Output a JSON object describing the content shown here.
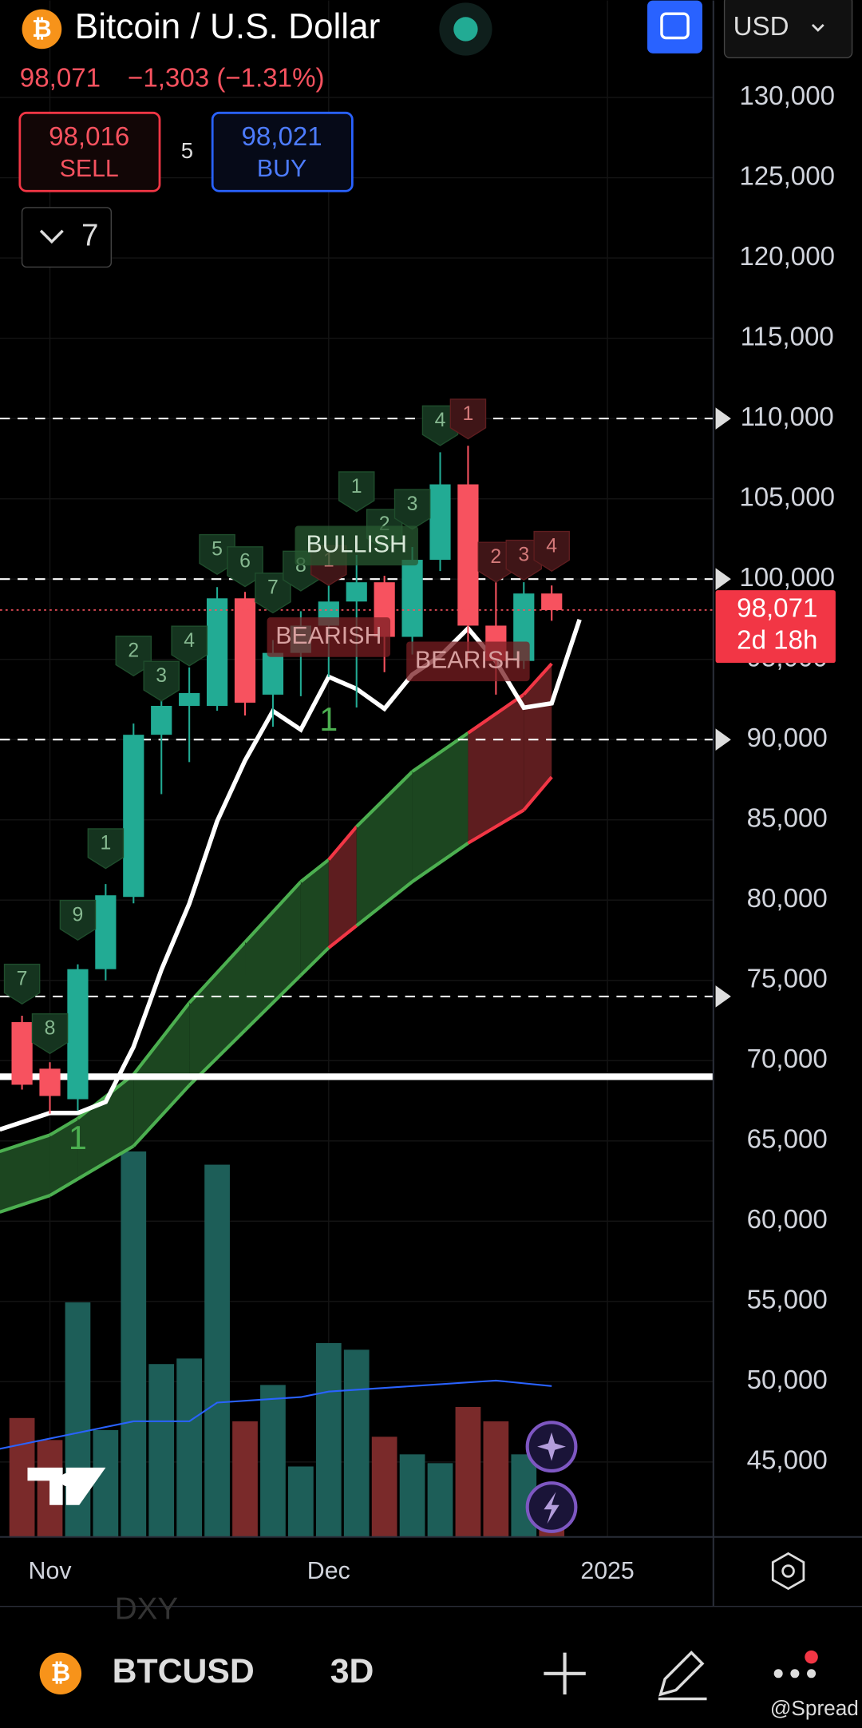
{
  "header": {
    "title": "Bitcoin / U.S. Dollar",
    "price": "98,071",
    "change": "−1,303 (−1.31%)",
    "currency": "USD",
    "sell_price": "98,016",
    "sell_label": "SELL",
    "spread": "5",
    "buy_price": "98,021",
    "buy_label": "BUY",
    "indicators_count": "7"
  },
  "chart_data": {
    "type": "candlestick",
    "xlim": [
      -0.79,
      24.8
    ],
    "xticks": [
      {
        "value": 1,
        "label": "Nov"
      },
      {
        "value": 11,
        "label": "Dec"
      },
      {
        "value": 21,
        "label": "2025"
      }
    ],
    "ylim": [
      40330,
      136040
    ],
    "yticks": [
      {
        "value": 45000,
        "label": "45,000"
      },
      {
        "value": 50000,
        "label": "50,000"
      },
      {
        "value": 55000,
        "label": "55,000"
      },
      {
        "value": 60000,
        "label": "60,000"
      },
      {
        "value": 65000,
        "label": "65,000"
      },
      {
        "value": 70000,
        "label": "70,000"
      },
      {
        "value": 75000,
        "label": "75,000"
      },
      {
        "value": 80000,
        "label": "80,000"
      },
      {
        "value": 85000,
        "label": "85,000"
      },
      {
        "value": 90000,
        "label": "90,000"
      },
      {
        "value": 95000,
        "label": "95,000"
      },
      {
        "value": 100000,
        "label": "100,000"
      },
      {
        "value": 105000,
        "label": "105,000"
      },
      {
        "value": 110000,
        "label": "110,000"
      },
      {
        "value": 115000,
        "label": "115,000"
      },
      {
        "value": 120000,
        "label": "120,000"
      },
      {
        "value": 125000,
        "label": "125,000"
      },
      {
        "value": 130000,
        "label": "130,000"
      }
    ],
    "grid": true,
    "up_color": "#22ab94",
    "down_color": "#f7525f",
    "open": [
      72400,
      69500,
      67600,
      75700,
      80200,
      90300,
      92100,
      92100,
      98800,
      92800,
      95400,
      97100,
      98600,
      99800,
      96400,
      101200,
      105900,
      97100,
      94900,
      99100
    ],
    "high": [
      72800,
      69900,
      76000,
      81000,
      91000,
      93500,
      94500,
      99500,
      99200,
      96200,
      98000,
      99600,
      101500,
      100200,
      102000,
      107900,
      108300,
      101000,
      99800,
      99600
    ],
    "low": [
      68200,
      66700,
      66900,
      75000,
      79800,
      86600,
      88600,
      91800,
      91500,
      90800,
      92700,
      93900,
      92000,
      94200,
      95300,
      100500,
      94900,
      92800,
      94400,
      97400
    ],
    "close": [
      68500,
      67800,
      75700,
      80300,
      90300,
      92100,
      92900,
      98800,
      92300,
      95400,
      97100,
      98600,
      99800,
      96400,
      101200,
      105900,
      97100,
      94900,
      99100,
      98071
    ],
    "last_price": 98071,
    "last_price_label": "98,071",
    "countdown": "2d 18h",
    "levels": [
      {
        "value": 110000,
        "style": "dashed"
      },
      {
        "value": 100000,
        "style": "dashed"
      },
      {
        "value": 90000,
        "style": "dashed"
      },
      {
        "value": 74000,
        "style": "dashed"
      },
      {
        "value": 69000,
        "style": "solid"
      }
    ],
    "white_line": {
      "color": "#ffffff",
      "x": [
        -0.8,
        1,
        2,
        3,
        4,
        5,
        6,
        7,
        8,
        9,
        10,
        11,
        12,
        13,
        14,
        15,
        16,
        17,
        18,
        19,
        20
      ],
      "values": [
        65710,
        66740,
        66740,
        67430,
        70860,
        75660,
        79780,
        84920,
        88700,
        91780,
        90620,
        93910,
        93160,
        91920,
        94050,
        95210,
        96930,
        94870,
        91990,
        92260,
        97480
      ]
    },
    "band": {
      "x": [
        -0.8,
        1,
        2,
        4,
        6,
        8,
        10,
        11,
        12,
        14,
        16,
        18,
        19
      ],
      "upper": [
        64340,
        65370,
        66400,
        69140,
        73600,
        77380,
        81150,
        82520,
        84580,
        88010,
        90410,
        92810,
        94730
      ],
      "lower": [
        60570,
        61600,
        62630,
        64680,
        68460,
        71890,
        75320,
        77030,
        78410,
        81150,
        83550,
        85610,
        87670
      ],
      "segment_colors": [
        "green",
        "green",
        "green",
        "green",
        "green",
        "green",
        "green",
        "red",
        "green",
        "green",
        "red",
        "red"
      ]
    },
    "volume": {
      "ylim": [
        0,
        420
      ],
      "values": [
        108,
        88,
        213,
        97,
        350,
        157,
        162,
        338,
        105,
        138,
        64,
        176,
        170,
        91,
        75,
        67,
        118,
        105,
        75,
        20
      ],
      "ma_color": "#2962ff",
      "ma_x": [
        -0.8,
        4,
        6,
        7,
        10,
        11,
        14,
        17,
        19
      ],
      "ma_values": [
        80,
        105,
        105,
        122,
        127,
        132,
        137,
        142,
        137
      ]
    },
    "counts": [
      {
        "text": "7",
        "at": 0,
        "price": 74770,
        "tone": "bull"
      },
      {
        "text": "8",
        "at": 1,
        "price": 71680,
        "tone": "bull"
      },
      {
        "text": "9",
        "at": 2,
        "price": 78750,
        "tone": "bull"
      },
      {
        "text": "1",
        "at": 3,
        "price": 83210,
        "tone": "bull"
      },
      {
        "text": "2",
        "at": 4,
        "price": 95210,
        "tone": "bull"
      },
      {
        "text": "3",
        "at": 5,
        "price": 93640,
        "tone": "bull"
      },
      {
        "text": "4",
        "at": 6,
        "price": 95830,
        "tone": "bull"
      },
      {
        "text": "5",
        "at": 7,
        "price": 101530,
        "tone": "bull"
      },
      {
        "text": "6",
        "at": 8,
        "price": 100770,
        "tone": "bull"
      },
      {
        "text": "7",
        "at": 9,
        "price": 99130,
        "tone": "bull"
      },
      {
        "text": "8",
        "at": 10,
        "price": 100500,
        "tone": "bull"
      },
      {
        "text": "1",
        "at": 11,
        "price": 100840,
        "tone": "bear"
      },
      {
        "text": "1",
        "at": 12,
        "price": 105440,
        "tone": "bull"
      },
      {
        "text": "2",
        "at": 13,
        "price": 103100,
        "tone": "bull"
      },
      {
        "text": "3",
        "at": 14,
        "price": 104340,
        "tone": "bull"
      },
      {
        "text": "4",
        "at": 15,
        "price": 109550,
        "tone": "bull"
      },
      {
        "text": "1",
        "at": 16,
        "price": 109970,
        "tone": "bear"
      },
      {
        "text": "2",
        "at": 17,
        "price": 101050,
        "tone": "bear"
      },
      {
        "text": "3",
        "at": 18,
        "price": 101180,
        "tone": "bear"
      },
      {
        "text": "4",
        "at": 19,
        "price": 101730,
        "tone": "bear"
      }
    ],
    "big_marks": [
      {
        "text": "1",
        "at": 2,
        "price": 65030
      },
      {
        "text": "1",
        "at": 11,
        "price": 91100
      }
    ],
    "signals": [
      {
        "text": "BULLISH",
        "at": 12,
        "price": 102080,
        "tone": "bull"
      },
      {
        "text": "BEARISH",
        "at": 11,
        "price": 96380,
        "tone": "bear"
      },
      {
        "text": "BEARISH",
        "at": 16,
        "price": 94870,
        "tone": "bear"
      }
    ]
  },
  "footer": {
    "symbol": "BTCUSD",
    "interval": "3D",
    "behind": "DXY",
    "credit": "@Spread"
  }
}
